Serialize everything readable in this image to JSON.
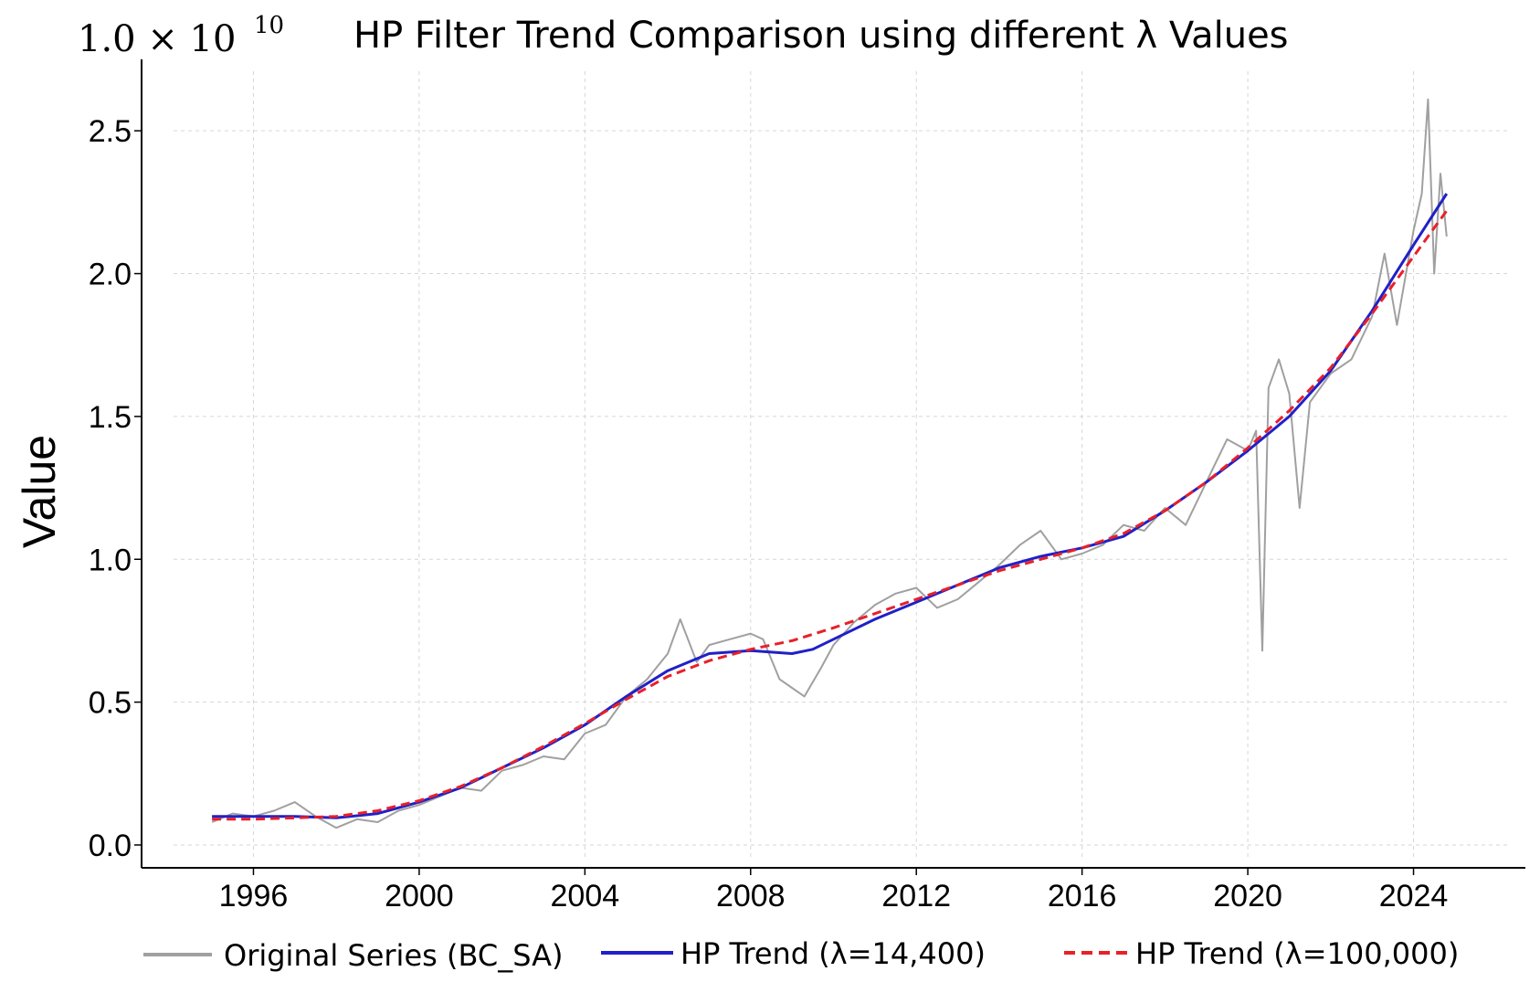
{
  "chart_data": {
    "type": "line",
    "title": "HP Filter Trend Comparison using different λ Values",
    "xlabel": "",
    "ylabel": "Value",
    "y_multiplier": {
      "base": "1.0 × 10",
      "exponent": "10"
    },
    "xlim": [
      1993.3,
      2026.7
    ],
    "ylim": [
      -0.08,
      2.75
    ],
    "x_ticks": [
      1996,
      2000,
      2004,
      2008,
      2012,
      2016,
      2020,
      2024
    ],
    "x_tick_labels": [
      "1996",
      "2000",
      "2004",
      "2008",
      "2012",
      "2016",
      "2020",
      "2024"
    ],
    "y_ticks": [
      0.0,
      0.5,
      1.0,
      1.5,
      2.0,
      2.5
    ],
    "y_tick_labels": [
      "0.0",
      "0.5",
      "1.0",
      "1.5",
      "2.0",
      "2.5"
    ],
    "grid": true,
    "legend_position": "bottom",
    "series": [
      {
        "name": "Original Series (BC_SA)",
        "color": "#a0a0a0",
        "style": "solid",
        "x": [
          1995.0,
          1995.5,
          1996.0,
          1996.5,
          1997.0,
          1997.5,
          1998.0,
          1998.5,
          1999.0,
          1999.5,
          2000.0,
          2000.5,
          2001.0,
          2001.5,
          2002.0,
          2002.5,
          2003.0,
          2003.5,
          2004.0,
          2004.5,
          2005.0,
          2005.5,
          2006.0,
          2006.3,
          2006.7,
          2007.0,
          2007.5,
          2008.0,
          2008.3,
          2008.7,
          2009.0,
          2009.3,
          2009.7,
          2010.0,
          2010.5,
          2011.0,
          2011.5,
          2012.0,
          2012.5,
          2013.0,
          2013.5,
          2014.0,
          2014.5,
          2015.0,
          2015.5,
          2016.0,
          2016.5,
          2017.0,
          2017.5,
          2018.0,
          2018.5,
          2019.0,
          2019.5,
          2020.0,
          2020.2,
          2020.35,
          2020.5,
          2020.75,
          2021.0,
          2021.25,
          2021.5,
          2022.0,
          2022.5,
          2023.0,
          2023.3,
          2023.6,
          2024.0,
          2024.2,
          2024.35,
          2024.5,
          2024.65,
          2024.8
        ],
        "values": [
          0.08,
          0.11,
          0.1,
          0.12,
          0.15,
          0.1,
          0.06,
          0.09,
          0.08,
          0.12,
          0.14,
          0.17,
          0.2,
          0.19,
          0.26,
          0.28,
          0.31,
          0.3,
          0.39,
          0.42,
          0.52,
          0.58,
          0.67,
          0.79,
          0.64,
          0.7,
          0.72,
          0.74,
          0.72,
          0.58,
          0.55,
          0.52,
          0.62,
          0.7,
          0.78,
          0.84,
          0.88,
          0.9,
          0.83,
          0.86,
          0.92,
          0.98,
          1.05,
          1.1,
          1.0,
          1.02,
          1.05,
          1.12,
          1.1,
          1.18,
          1.12,
          1.27,
          1.42,
          1.38,
          1.45,
          0.68,
          1.6,
          1.7,
          1.58,
          1.18,
          1.55,
          1.65,
          1.7,
          1.85,
          2.07,
          1.82,
          2.15,
          2.28,
          2.61,
          2.0,
          2.35,
          2.13
        ]
      },
      {
        "name": "HP Trend (λ=14,400)",
        "color": "#2020c8",
        "style": "solid",
        "x": [
          1995.0,
          1996.0,
          1997.0,
          1998.0,
          1999.0,
          2000.0,
          2001.0,
          2002.0,
          2003.0,
          2004.0,
          2005.0,
          2006.0,
          2007.0,
          2008.0,
          2008.5,
          2009.0,
          2009.5,
          2010.0,
          2011.0,
          2012.0,
          2013.0,
          2014.0,
          2015.0,
          2016.0,
          2017.0,
          2018.0,
          2019.0,
          2020.0,
          2021.0,
          2022.0,
          2023.0,
          2024.0,
          2024.8
        ],
        "values": [
          0.1,
          0.1,
          0.1,
          0.095,
          0.11,
          0.15,
          0.2,
          0.27,
          0.34,
          0.42,
          0.52,
          0.61,
          0.67,
          0.68,
          0.675,
          0.67,
          0.685,
          0.72,
          0.79,
          0.85,
          0.91,
          0.97,
          1.01,
          1.04,
          1.08,
          1.17,
          1.27,
          1.38,
          1.5,
          1.66,
          1.87,
          2.1,
          2.28
        ]
      },
      {
        "name": "HP Trend (λ=100,000)",
        "color": "#e8202a",
        "style": "dashed",
        "x": [
          1995.0,
          1996.0,
          1997.0,
          1998.0,
          1999.0,
          2000.0,
          2001.0,
          2002.0,
          2003.0,
          2004.0,
          2005.0,
          2006.0,
          2007.0,
          2008.0,
          2009.0,
          2010.0,
          2011.0,
          2012.0,
          2013.0,
          2014.0,
          2015.0,
          2016.0,
          2017.0,
          2018.0,
          2019.0,
          2020.0,
          2021.0,
          2022.0,
          2023.0,
          2024.0,
          2024.8
        ],
        "values": [
          0.09,
          0.09,
          0.095,
          0.1,
          0.12,
          0.155,
          0.205,
          0.27,
          0.345,
          0.425,
          0.51,
          0.59,
          0.645,
          0.685,
          0.715,
          0.76,
          0.81,
          0.86,
          0.91,
          0.96,
          1.0,
          1.04,
          1.09,
          1.17,
          1.27,
          1.39,
          1.52,
          1.67,
          1.86,
          2.06,
          2.22
        ]
      }
    ]
  }
}
